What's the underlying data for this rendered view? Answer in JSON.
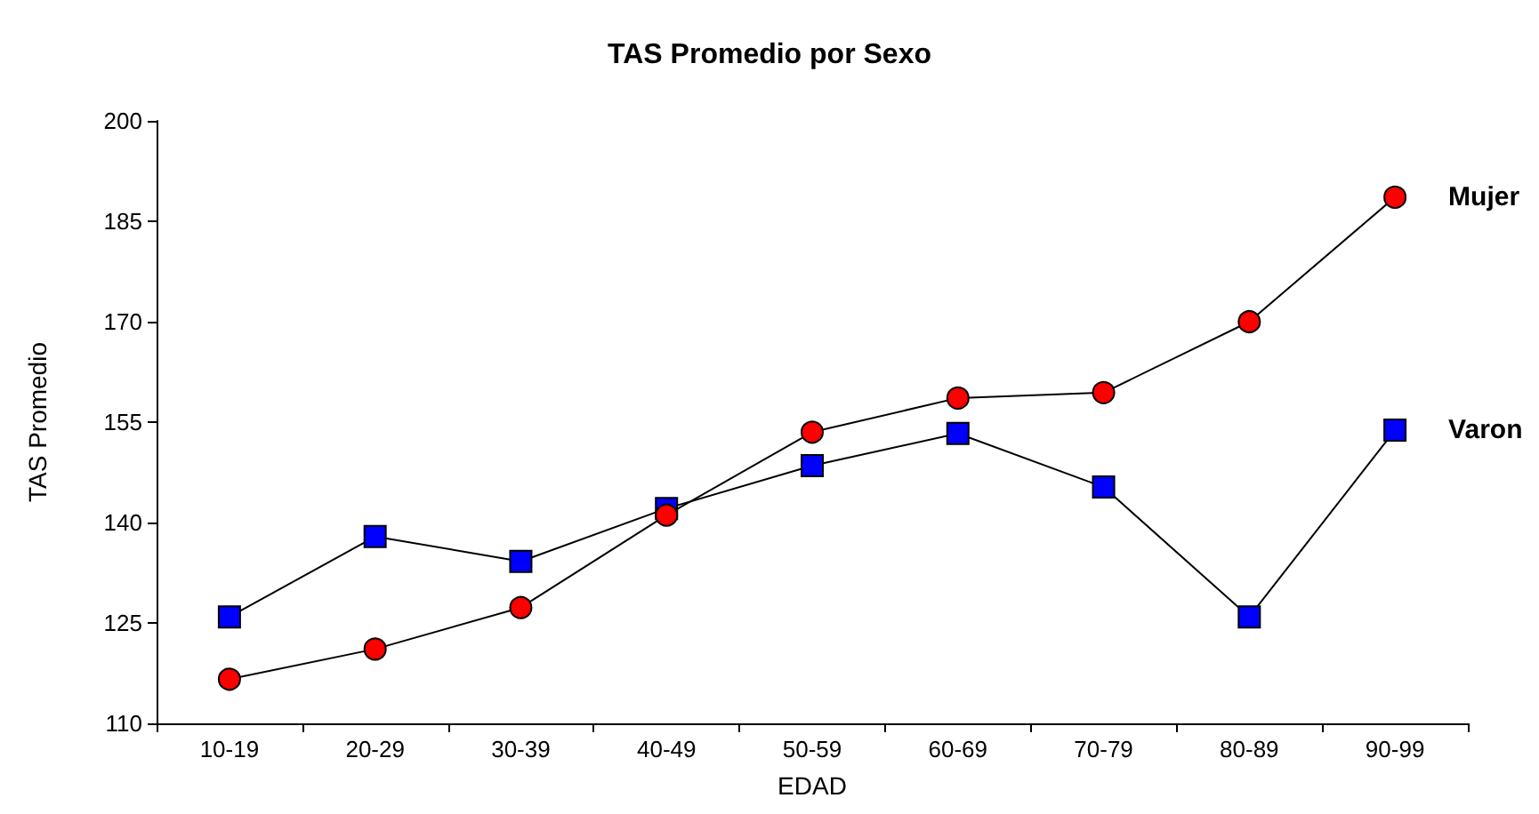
{
  "chart_data": {
    "type": "line",
    "title": "TAS Promedio por Sexo",
    "xlabel": "EDAD",
    "ylabel": "TAS Promedio",
    "categories": [
      "10-19",
      "20-29",
      "30-39",
      "40-49",
      "50-59",
      "60-69",
      "70-79",
      "80-89",
      "90-99"
    ],
    "series": [
      {
        "name": "Mujer",
        "color": "#ff0000",
        "marker": "circle",
        "values": [
          116.6,
          121.1,
          127.3,
          141.1,
          153.5,
          158.6,
          159.4,
          170,
          188.6
        ]
      },
      {
        "name": "Varon",
        "color": "#0000ff",
        "marker": "square",
        "values": [
          125.9,
          137.9,
          134.2,
          142.1,
          148.5,
          153.3,
          145.3,
          125.9,
          153.8
        ]
      }
    ],
    "ylim": [
      110,
      200
    ],
    "yticks": [
      110,
      125,
      140,
      155,
      170,
      185,
      200
    ],
    "grid": false,
    "legend": false,
    "line_style": "solid"
  }
}
